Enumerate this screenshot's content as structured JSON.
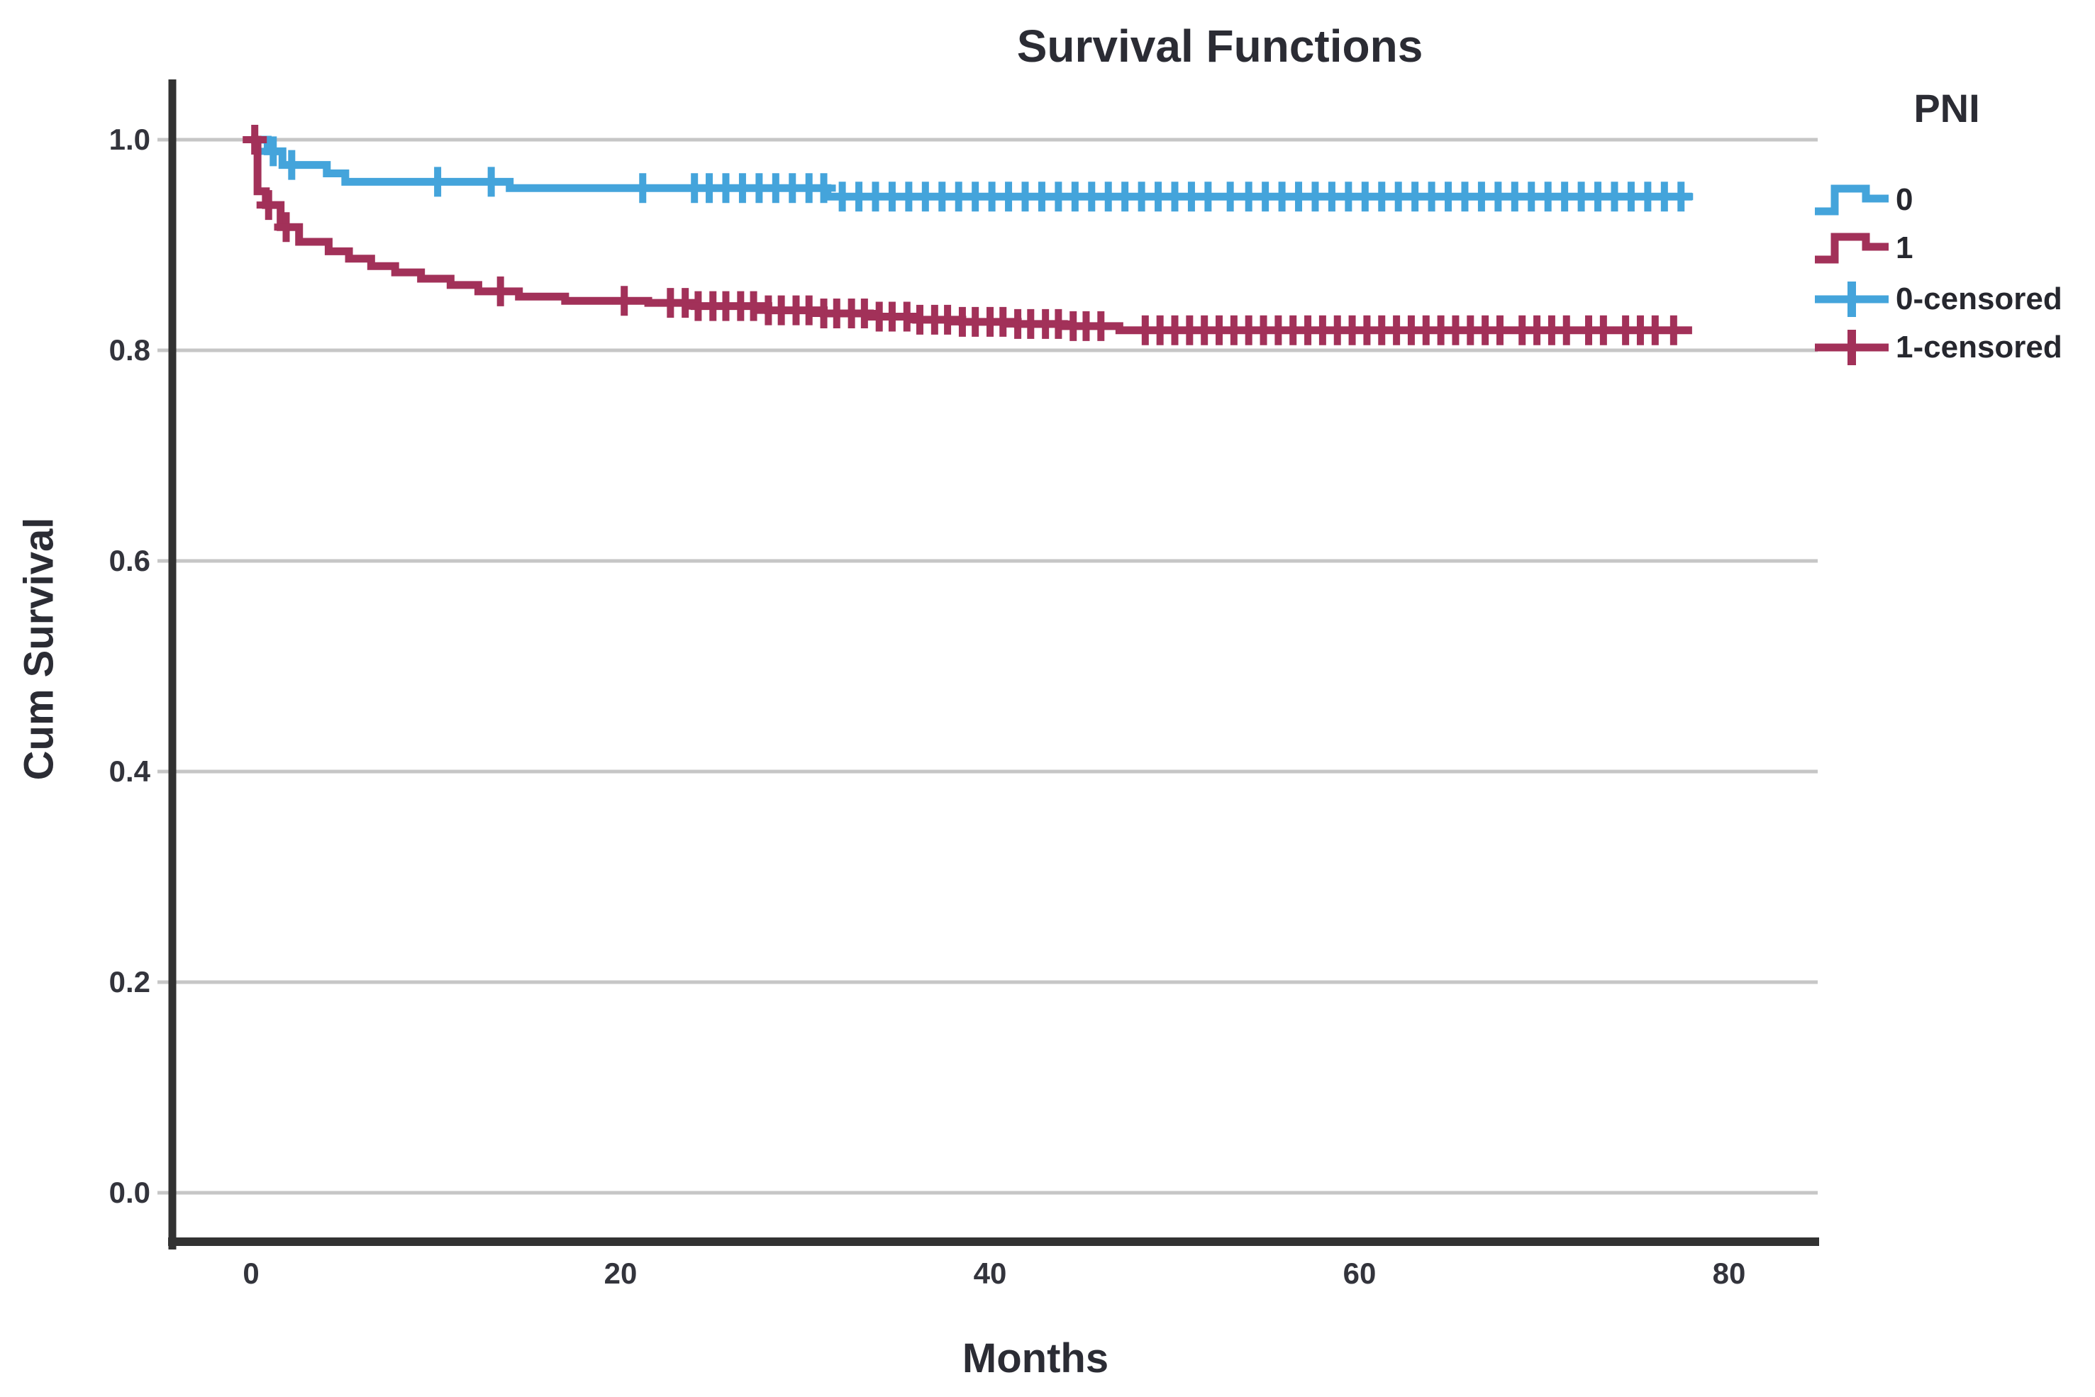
{
  "title": "Survival Functions",
  "axes": {
    "x_label": "Months",
    "y_label": "Cum Survival",
    "x_tick_labels": [
      "0",
      "20",
      "40",
      "60",
      "80"
    ],
    "y_tick_labels": [
      "1.0",
      "0.8",
      "0.6",
      "0.4",
      "0.2",
      "0.0"
    ]
  },
  "legend": {
    "title": "PNI",
    "items": [
      {
        "label": "0",
        "type": "step-line",
        "color": "#44A4DB"
      },
      {
        "label": "1",
        "type": "step-line",
        "color": "#A23159"
      },
      {
        "label": "0-censored",
        "type": "censor-mark",
        "color": "#44A4DB"
      },
      {
        "label": "1-censored",
        "type": "censor-mark",
        "color": "#A23159"
      }
    ]
  },
  "colors": {
    "pni0": "#44A4DB",
    "pni1": "#A23159",
    "gridline": "#c6c6c6",
    "axis": "#323232",
    "text": "#2b2c34"
  },
  "chart_data": {
    "type": "line",
    "subtype": "kaplan-meier-step",
    "title": "Survival Functions",
    "xlabel": "Months",
    "ylabel": "Cum Survival",
    "xlim": [
      -4.3,
      84.5
    ],
    "ylim": [
      -0.047,
      1.057
    ],
    "x_ticks": [
      0,
      20,
      40,
      60,
      80
    ],
    "y_ticks": [
      1.0,
      0.8,
      0.6,
      0.4,
      0.2,
      0.0
    ],
    "grid": "horizontal",
    "legend_title": "PNI",
    "legend_position": "right",
    "series": [
      {
        "name": "0",
        "group": "PNI = 0",
        "color": "#44A4DB",
        "steps": [
          [
            0,
            1.0
          ],
          [
            0.9,
            0.989
          ],
          [
            1.7,
            0.976
          ],
          [
            4.1,
            0.968
          ],
          [
            5.1,
            0.96
          ],
          [
            14.0,
            0.954
          ],
          [
            31.2,
            0.946
          ],
          [
            78.0,
            0.946
          ]
        ],
        "censored_times": [
          1.2,
          2.2,
          10.1,
          13.0,
          21.2,
          24.0,
          24.8,
          25.7,
          26.6,
          27.5,
          28.4,
          29.3,
          30.2,
          31.0,
          32.0,
          32.9,
          33.8,
          34.7,
          35.6,
          36.5,
          37.4,
          38.3,
          39.2,
          40.1,
          41.0,
          41.9,
          42.8,
          43.7,
          44.6,
          45.5,
          46.4,
          47.3,
          48.2,
          49.1,
          50.0,
          50.9,
          51.8,
          53.0,
          54.0,
          54.9,
          55.8,
          56.7,
          57.6,
          58.5,
          59.4,
          60.3,
          61.2,
          62.1,
          63.0,
          63.9,
          64.8,
          65.7,
          66.6,
          67.5,
          68.4,
          69.3,
          70.2,
          71.1,
          72.0,
          72.9,
          73.8,
          74.7,
          75.6,
          76.5,
          77.4
        ]
      },
      {
        "name": "1",
        "group": "PNI = 1",
        "color": "#A23159",
        "steps": [
          [
            0,
            1.0
          ],
          [
            0.35,
            0.951
          ],
          [
            0.8,
            0.938
          ],
          [
            1.6,
            0.917
          ],
          [
            2.6,
            0.903
          ],
          [
            4.2,
            0.894
          ],
          [
            5.3,
            0.887
          ],
          [
            6.5,
            0.88
          ],
          [
            7.8,
            0.874
          ],
          [
            9.2,
            0.868
          ],
          [
            10.8,
            0.862
          ],
          [
            12.3,
            0.856
          ],
          [
            14.5,
            0.851
          ],
          [
            17.0,
            0.847
          ],
          [
            21.5,
            0.845
          ],
          [
            24.0,
            0.842
          ],
          [
            28.0,
            0.838
          ],
          [
            31.0,
            0.835
          ],
          [
            33.5,
            0.832
          ],
          [
            36.0,
            0.829
          ],
          [
            38.5,
            0.827
          ],
          [
            41.5,
            0.825
          ],
          [
            44.0,
            0.823
          ],
          [
            47.0,
            0.819
          ],
          [
            78.0,
            0.819
          ]
        ],
        "censored_times": [
          0.2,
          0.95,
          1.9,
          13.5,
          20.2,
          22.7,
          23.5,
          24.2,
          25.0,
          25.7,
          26.5,
          27.2,
          28.0,
          28.7,
          29.5,
          30.2,
          31.0,
          31.7,
          32.5,
          33.2,
          34.0,
          34.7,
          35.5,
          36.2,
          37.0,
          37.7,
          38.5,
          39.2,
          40.0,
          40.7,
          41.5,
          42.2,
          43.0,
          43.7,
          44.5,
          45.2,
          46.0,
          48.4,
          49.2,
          50.0,
          50.8,
          51.6,
          52.4,
          53.2,
          54.0,
          54.8,
          55.6,
          56.4,
          57.2,
          58.0,
          58.8,
          59.6,
          60.4,
          61.2,
          62.0,
          62.8,
          63.6,
          64.4,
          65.2,
          66.0,
          66.8,
          67.6,
          68.8,
          69.6,
          70.4,
          71.2,
          72.4,
          73.2,
          74.4,
          75.2,
          76.0,
          77.0
        ]
      }
    ]
  }
}
